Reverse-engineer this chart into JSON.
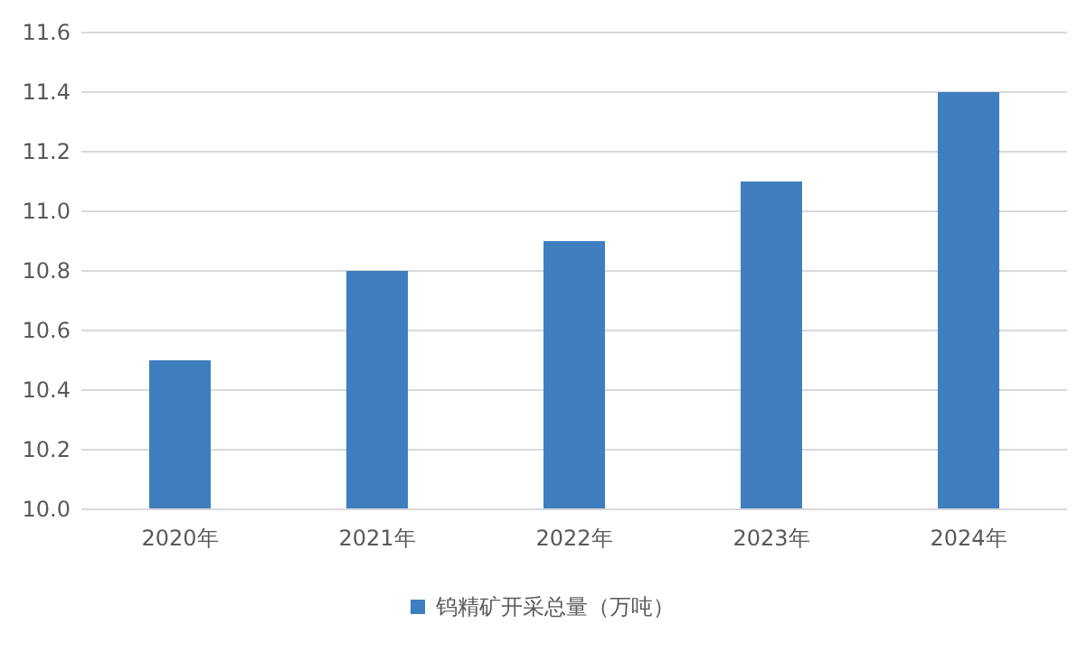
{
  "chart_data": {
    "type": "bar",
    "categories": [
      "2020年",
      "2021年",
      "2022年",
      "2023年",
      "2024年"
    ],
    "series": [
      {
        "name": "钨精矿开采总量（万吨）",
        "color": "#3f7fbf",
        "values": [
          10.5,
          10.8,
          10.9,
          11.1,
          11.4
        ]
      }
    ],
    "ylim": [
      10.0,
      11.6
    ],
    "yticks": [
      {
        "value": 10.0,
        "label": "10.0"
      },
      {
        "value": 10.2,
        "label": "10.2"
      },
      {
        "value": 10.4,
        "label": "10.4"
      },
      {
        "value": 10.6,
        "label": "10.6"
      },
      {
        "value": 10.8,
        "label": "10.8"
      },
      {
        "value": 11.0,
        "label": "11.0"
      },
      {
        "value": 11.2,
        "label": "11.2"
      },
      {
        "value": 11.4,
        "label": "11.4"
      },
      {
        "value": 11.6,
        "label": "11.6"
      }
    ],
    "grid": "y",
    "legend": "bottom"
  }
}
